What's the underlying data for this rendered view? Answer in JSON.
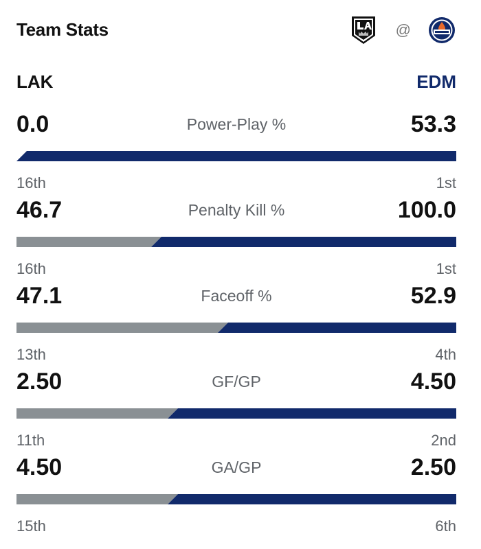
{
  "header": {
    "title": "Team Stats",
    "separator": "@",
    "away_logo_icon": "la-kings-logo-icon",
    "home_logo_icon": "edmonton-oilers-logo-icon"
  },
  "teams": {
    "left": "LAK",
    "right": "EDM"
  },
  "colors": {
    "left_bar": "#8a9094",
    "right_bar": "#112a6b",
    "right_team_text": "#112a6b"
  },
  "stats": [
    {
      "label": "Power-Play %",
      "left_value": "0.0",
      "right_value": "53.3",
      "left_rank": "16th",
      "right_rank": "1st",
      "left_share": 0.0,
      "right_share": 1.0
    },
    {
      "label": "Penalty Kill %",
      "left_value": "46.7",
      "right_value": "100.0",
      "left_rank": "16th",
      "right_rank": "1st",
      "left_share": 0.318,
      "right_share": 0.682
    },
    {
      "label": "Faceoff %",
      "left_value": "47.1",
      "right_value": "52.9",
      "left_rank": "13th",
      "right_rank": "4th",
      "left_share": 0.471,
      "right_share": 0.529
    },
    {
      "label": "GF/GP",
      "left_value": "2.50",
      "right_value": "4.50",
      "left_rank": "11th",
      "right_rank": "2nd",
      "left_share": 0.357,
      "right_share": 0.643
    },
    {
      "label": "GA/GP",
      "left_value": "4.50",
      "right_value": "2.50",
      "left_rank": "15th",
      "right_rank": "6th",
      "left_share": 0.357,
      "right_share": 0.643
    }
  ]
}
